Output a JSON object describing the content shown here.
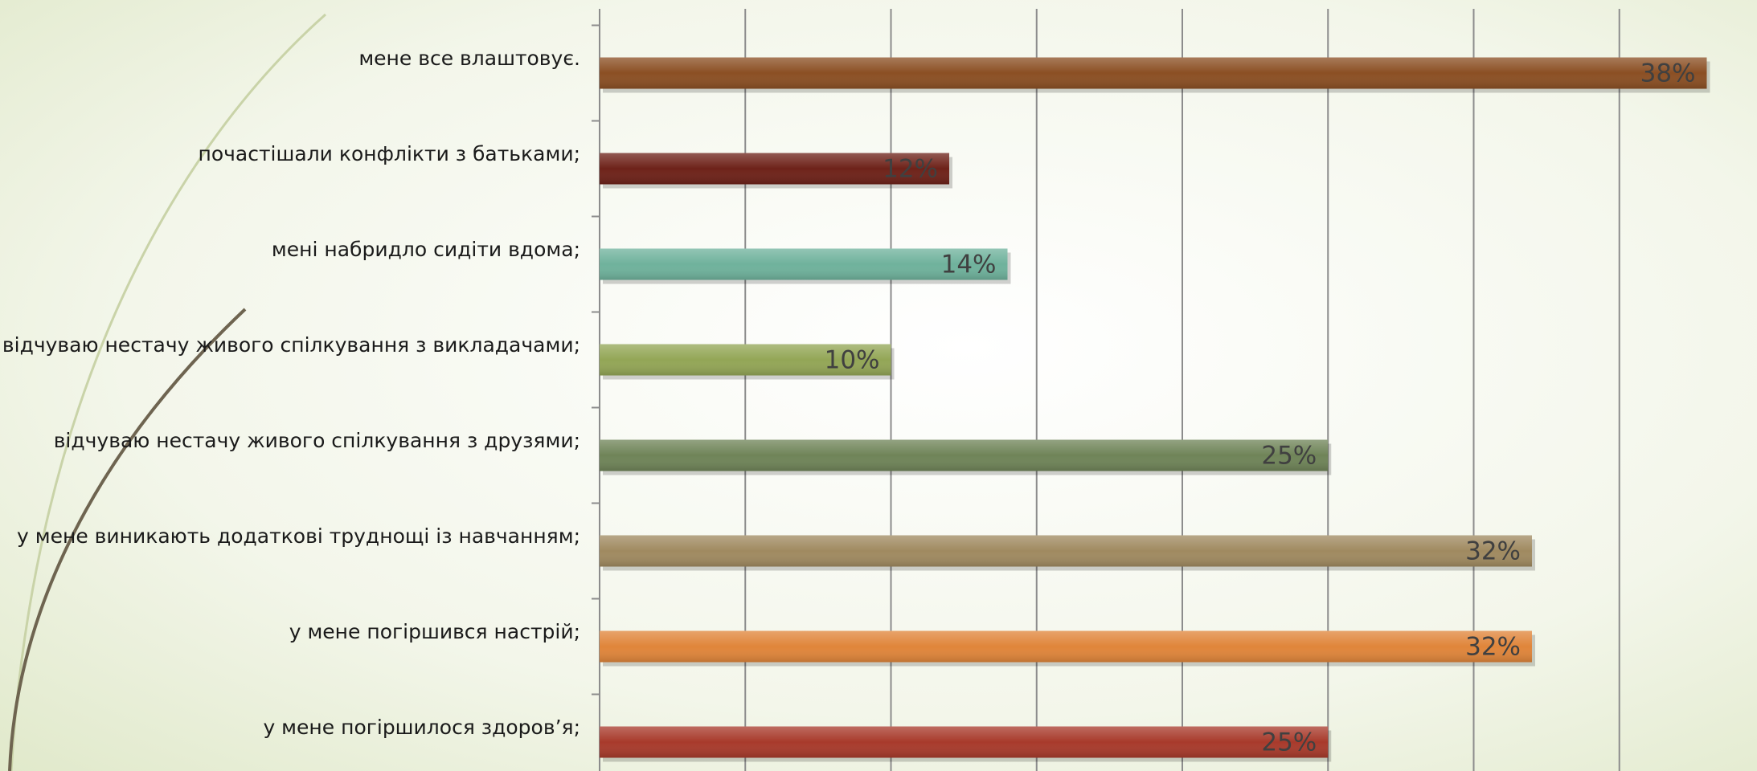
{
  "chart_data": {
    "type": "bar",
    "orientation": "horizontal",
    "categories": [
      "мене все влаштовує.",
      "почастішали конфлікти з батьками;",
      "мені набридло сидіти вдома;",
      "відчуваю нестачу живого спілкування з викладачами;",
      "відчуваю нестачу живого спілкування з друзями;",
      "у мене виникають додаткові труднощі із навчанням;",
      "у мене погіршився настрій;",
      "у мене погіршилося здоров’я;"
    ],
    "values": [
      38,
      12,
      14,
      10,
      25,
      32,
      32,
      25
    ],
    "value_labels": [
      "38%",
      "12%",
      "14%",
      "10%",
      "25%",
      "32%",
      "32%",
      "25%"
    ],
    "colors": [
      "#8b4f23",
      "#6e2219",
      "#6fb29c",
      "#93a656",
      "#6f8458",
      "#a08a60",
      "#e0853a",
      "#a83a2b"
    ],
    "xlim": [
      0,
      40
    ],
    "xticks": [
      0,
      5,
      10,
      15,
      20,
      25,
      30,
      35
    ],
    "grid": true
  }
}
